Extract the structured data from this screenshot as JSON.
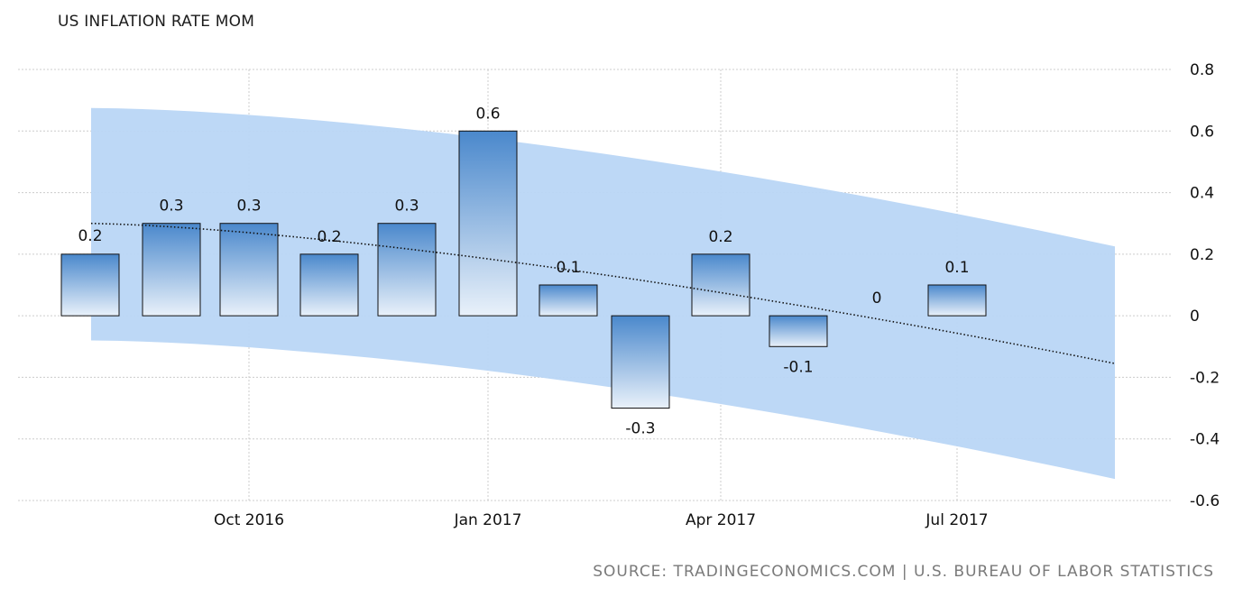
{
  "chart_data": {
    "type": "bar",
    "title": "US INFLATION RATE MOM",
    "xlabel": "",
    "ylabel": "",
    "ylim": [
      -0.6,
      0.8
    ],
    "yticks": [
      0.8,
      0.6,
      0.4,
      0.2,
      0,
      -0.2,
      -0.4,
      -0.6
    ],
    "ytick_labels": [
      "0.8",
      "0.6",
      "0.4",
      "0.2",
      "0",
      "-0.2",
      "-0.4",
      "-0.6"
    ],
    "x_tick_labels": [
      "Oct 2016",
      "Jan 2017",
      "Apr 2017",
      "Jul 2017"
    ],
    "categories": [
      "Aug 2016",
      "Sep 2016",
      "Oct 2016",
      "Nov 2016",
      "Dec 2016",
      "Jan 2017",
      "Feb 2017",
      "Mar 2017",
      "Apr 2017",
      "May 2017",
      "Jun 2017",
      "Jul 2017"
    ],
    "values": [
      0.2,
      0.3,
      0.3,
      0.2,
      0.3,
      0.6,
      0.1,
      -0.3,
      0.2,
      -0.1,
      0,
      0.1
    ],
    "value_labels": [
      "0.2",
      "0.3",
      "0.3",
      "0.2",
      "0.3",
      "0.6",
      "0.1",
      "-0.3",
      "0.2",
      "-0.1",
      "0",
      "0.1"
    ],
    "trend": {
      "start": 0.3,
      "end": -0.155
    },
    "band": {
      "upper_start": 0.675,
      "upper_end": 0.225,
      "lower_start": -0.08,
      "lower_end": -0.53
    },
    "grid": true,
    "colors": {
      "bar_top": "#4a88cc",
      "bar_bottom": "#e9f1fa",
      "bar_stroke": "#111111",
      "band": "#b9d6f6",
      "trend": "#111111",
      "grid": "#cccccc"
    }
  },
  "source": "SOURCE: TRADINGECONOMICS.COM | U.S. BUREAU OF LABOR STATISTICS"
}
